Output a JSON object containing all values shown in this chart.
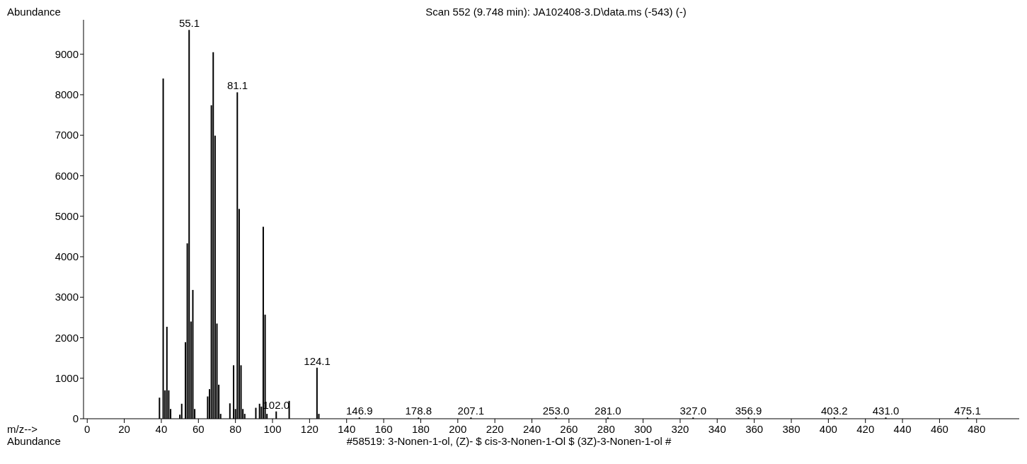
{
  "chart_data": {
    "type": "bar",
    "title": "Scan 552 (9.748 min): JA102408-3.D\\data.ms (-543) (-)",
    "xlabel": "m/z-->",
    "ylabel": "Abundance",
    "x": [
      39,
      41,
      42,
      43,
      44,
      45,
      50,
      51,
      53,
      54,
      55,
      56,
      57,
      58,
      65,
      66,
      67,
      68,
      69,
      70,
      71,
      72,
      77,
      79,
      80,
      81,
      82,
      83,
      84,
      85,
      91,
      93,
      94,
      95,
      96,
      97,
      102,
      109,
      124,
      125,
      146.9,
      178.8,
      207.1,
      253,
      281,
      327,
      356.9,
      403.2,
      431,
      475.1
    ],
    "values": [
      520,
      8400,
      700,
      2270,
      700,
      240,
      100,
      370,
      1890,
      4330,
      9600,
      2400,
      3180,
      240,
      550,
      730,
      7740,
      9050,
      6990,
      2350,
      840,
      120,
      380,
      1320,
      240,
      8060,
      5180,
      1320,
      240,
      120,
      270,
      370,
      300,
      4740,
      2570,
      120,
      180,
      440,
      1260,
      120,
      30,
      30,
      30,
      30,
      30,
      30,
      30,
      30,
      30,
      30
    ],
    "color": "#000000",
    "xlim": [
      -2,
      503
    ],
    "xticks": [
      0,
      20,
      40,
      60,
      80,
      100,
      120,
      140,
      160,
      180,
      200,
      220,
      240,
      260,
      280,
      300,
      320,
      340,
      360,
      380,
      400,
      420,
      440,
      460,
      480
    ],
    "ylim": [
      0,
      9850
    ],
    "yticks": [
      0,
      1000,
      2000,
      3000,
      4000,
      5000,
      6000,
      7000,
      8000,
      9000
    ],
    "annotations": [
      {
        "text": "55.1",
        "x": 55.1,
        "y": 9600
      },
      {
        "text": "81.1",
        "x": 81.1,
        "y": 8060
      },
      {
        "text": "102.0",
        "x": 102,
        "y": 180
      },
      {
        "text": "124.1",
        "x": 124.1,
        "y": 1260
      },
      {
        "text": "146.9",
        "x": 146.9,
        "y": 30
      },
      {
        "text": "178.8",
        "x": 178.8,
        "y": 30
      },
      {
        "text": "207.1",
        "x": 207.1,
        "y": 30
      },
      {
        "text": "253.0",
        "x": 253,
        "y": 30
      },
      {
        "text": "281.0",
        "x": 281,
        "y": 30
      },
      {
        "text": "327.0",
        "x": 327,
        "y": 30
      },
      {
        "text": "356.9",
        "x": 356.9,
        "y": 30
      },
      {
        "text": "403.2",
        "x": 403.2,
        "y": 30
      },
      {
        "text": "431.0",
        "x": 431,
        "y": 30
      },
      {
        "text": "475.1",
        "x": 475.1,
        "y": 30
      },
      "Abundance",
      "#58519: 3-Nonen-1-ol, (Z)- $ cis-3-Nonen-1-Ol $ (3Z)-3-Nonen-1-ol #"
    ]
  }
}
